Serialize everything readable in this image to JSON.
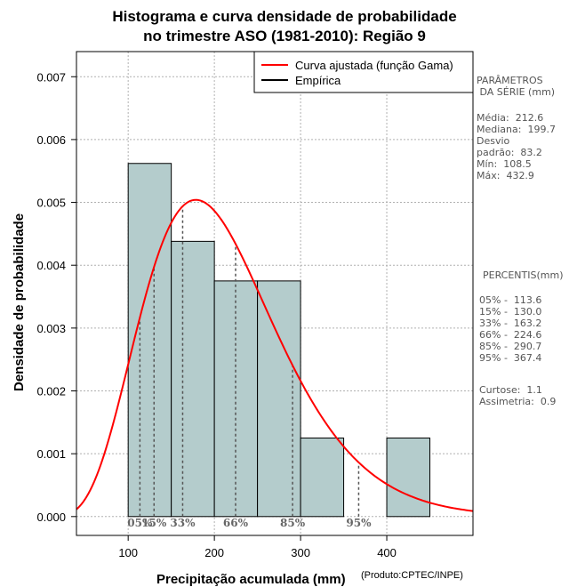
{
  "chart_data": {
    "type": "bar",
    "title_line1": "Histograma e curva densidade de probabilidade",
    "title_line2": "no trimestre ASO (1981-2010): Região 9",
    "xlabel": "Precipitação acumulada (mm)",
    "ylabel": "Densidade de probabilidade",
    "credit": "(Produto:CPTEC/INPE)",
    "xlim": [
      40,
      500
    ],
    "ylim": [
      -0.0003,
      0.0074
    ],
    "x_ticks": [
      100,
      200,
      300,
      400
    ],
    "y_ticks": [
      "0.000",
      "0.001",
      "0.002",
      "0.003",
      "0.004",
      "0.005",
      "0.006",
      "0.007"
    ],
    "grid": true,
    "bins": [
      {
        "x0": 100,
        "x1": 150,
        "density": 0.00562
      },
      {
        "x0": 150,
        "x1": 200,
        "density": 0.00438
      },
      {
        "x0": 200,
        "x1": 250,
        "density": 0.00375
      },
      {
        "x0": 250,
        "x1": 300,
        "density": 0.00375
      },
      {
        "x0": 300,
        "x1": 350,
        "density": 0.00125
      },
      {
        "x0": 350,
        "x1": 400,
        "density": 0.0
      },
      {
        "x0": 400,
        "x1": 450,
        "density": 0.00125
      }
    ],
    "gamma_curve": {
      "shape": 6.25,
      "scale": 34.0
    },
    "percentile_markers": [
      {
        "label": "05%",
        "value": 113.6
      },
      {
        "label": "15%",
        "value": 130.0
      },
      {
        "label": "33%",
        "value": 163.2
      },
      {
        "label": "66%",
        "value": 224.6
      },
      {
        "label": "85%",
        "value": 290.7
      },
      {
        "label": "95%",
        "value": 367.4
      }
    ],
    "legend": {
      "position": "top-right",
      "entries": [
        {
          "label": "Curva ajustada (função Gama)",
          "color": "#ff0000"
        },
        {
          "label": "Empírica",
          "color": "#000000"
        }
      ]
    },
    "colors": {
      "bar_fill": "#b4cccc",
      "bar_stroke": "#000000",
      "curve": "#ff0000",
      "grid": "#b0b0b0"
    }
  },
  "side_panel": {
    "params_title": "PARÂMETROS\n DA SÉRIE (mm)",
    "params": "Média:  212.6\nMediana:  199.7\nDesvio\npadrão:  83.2\nMín:  108.5\nMáx:  432.9",
    "percentis_title": "PERCENTIS(mm)",
    "percentis": "05% -  113.6\n15% -  130.0\n33% -  163.2\n66% -  224.6\n85% -  290.7\n95% -  367.4",
    "stats": "Curtose:  1.1\nAssimetria:  0.9"
  }
}
